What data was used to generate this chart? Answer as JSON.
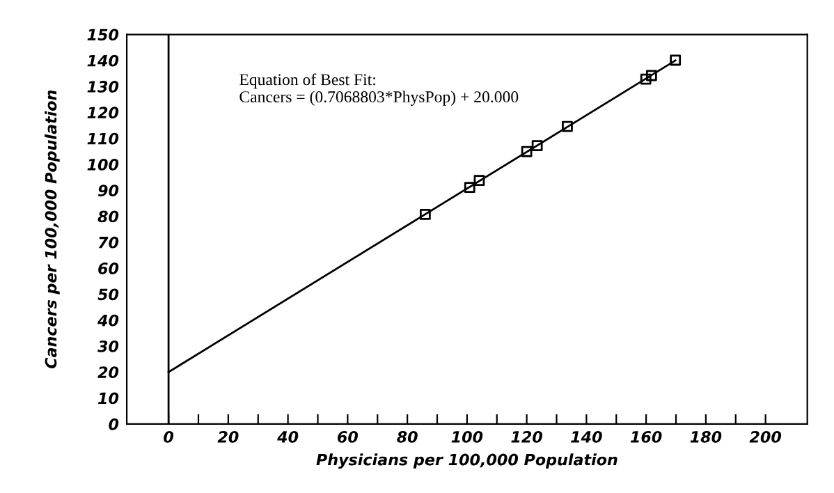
{
  "chart_data": {
    "type": "scatter",
    "xlabel": "Physicians per 100,000 Population",
    "ylabel": "Cancers per 100,000 Population",
    "annotations": [
      "Equation of Best Fit:\nCancers = (0.7068803*PhysPop) + 20.000"
    ],
    "series": [
      {
        "color": "#000000",
        "marker": "square",
        "x": [
          86,
          100.9,
          104.1,
          120,
          123.5,
          133.6,
          159.9,
          161.8,
          169.8
        ],
        "values": [
          80.7,
          91.1,
          93.8,
          104.9,
          107.2,
          114.6,
          132.8,
          134.2,
          140.1
        ]
      },
      {
        "type": "line",
        "color": "#000000",
        "line_style": "solid",
        "x": [
          0,
          169.8
        ],
        "values": [
          20,
          140
        ]
      }
    ],
    "ref_lines": [
      {
        "axis": "x",
        "value": 0,
        "color": "#000000"
      }
    ],
    "xlim": [
      -14,
      214
    ],
    "ylim": [
      0,
      150
    ],
    "xticks": [
      0,
      {
        "value": 10,
        "label": null
      },
      20,
      {
        "value": 30,
        "label": null
      },
      40,
      {
        "value": 50,
        "label": null
      },
      60,
      {
        "value": 70,
        "label": null
      },
      80,
      {
        "value": 90,
        "label": null
      },
      100,
      {
        "value": 110,
        "label": null
      },
      120,
      {
        "value": 130,
        "label": null
      },
      140,
      {
        "value": 150,
        "label": null
      },
      160,
      {
        "value": 170,
        "label": null
      },
      180,
      {
        "value": 190,
        "label": null
      },
      200
    ],
    "yticks": [
      0,
      10,
      20,
      30,
      40,
      50,
      60,
      70,
      80,
      90,
      100,
      110,
      120,
      130,
      140,
      150
    ],
    "grid": false,
    "legend": false
  }
}
